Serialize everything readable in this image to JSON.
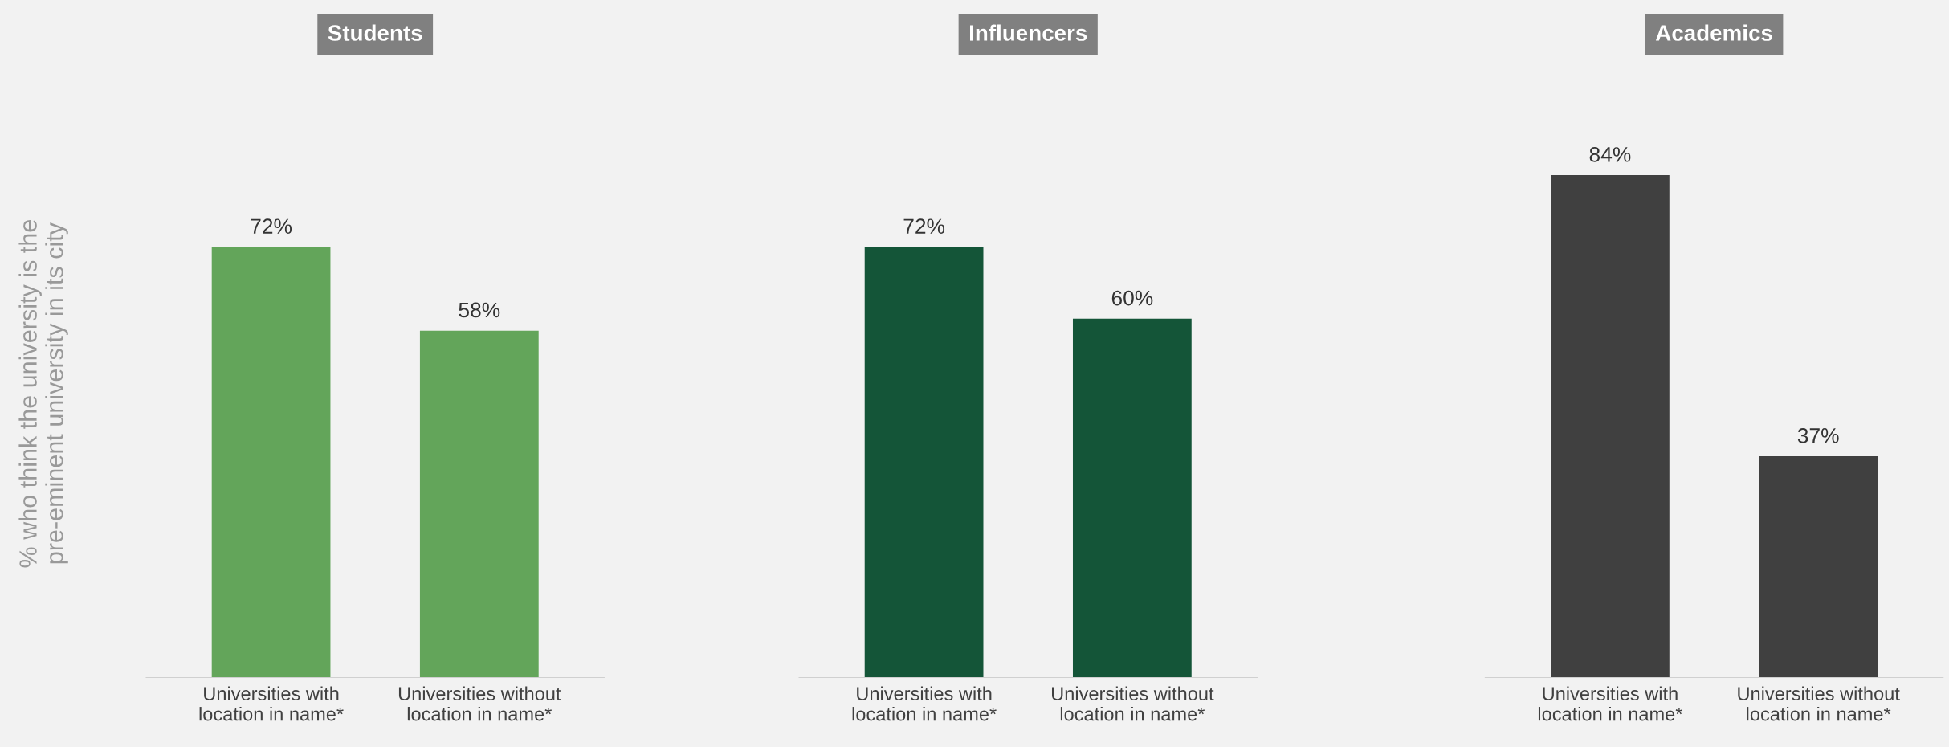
{
  "chart_data": [
    {
      "type": "bar",
      "title": "Students",
      "ylabel": "% who think the university is the\npre-eminent university in its city",
      "categories": [
        "Universities with\nlocation in name*",
        "Universities without\nlocation in name*"
      ],
      "values": [
        72,
        58
      ],
      "value_labels": [
        "72%",
        "58%"
      ],
      "color": "#63a55a",
      "tick_labels": "x",
      "grid": false,
      "legend": false
    },
    {
      "type": "bar",
      "title": "Influencers",
      "categories": [
        "Universities with\nlocation in name*",
        "Universities without\nlocation in name*"
      ],
      "values": [
        72,
        60
      ],
      "value_labels": [
        "72%",
        "60%"
      ],
      "color": "#145538",
      "tick_labels": "x",
      "grid": false,
      "legend": false
    },
    {
      "type": "bar",
      "title": "Academics",
      "categories": [
        "Universities with\nlocation in name*",
        "Universities without\nlocation in name*"
      ],
      "values": [
        84,
        37
      ],
      "value_labels": [
        "84%",
        "37%"
      ],
      "color": "#404040",
      "tick_labels": "x",
      "grid": false,
      "legend": false
    }
  ]
}
